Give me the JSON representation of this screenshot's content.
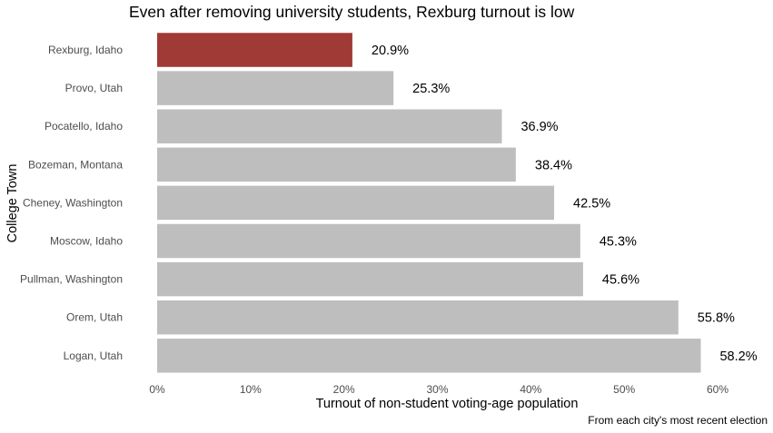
{
  "chart_data": {
    "type": "bar",
    "orientation": "horizontal",
    "title": "Even after removing university students, Rexburg turnout is low",
    "xlabel": "Turnout of non-student voting-age population",
    "ylabel": "College Town",
    "caption": "From each city's most recent election",
    "categories": [
      "Rexburg, Idaho",
      "Provo, Utah",
      "Pocatello, Idaho",
      "Bozeman, Montana",
      "Cheney, Washington",
      "Moscow, Idaho",
      "Pullman, Washington",
      "Orem, Utah",
      "Logan, Utah"
    ],
    "values": [
      20.9,
      25.3,
      36.9,
      38.4,
      42.5,
      45.3,
      45.6,
      55.8,
      58.2
    ],
    "value_labels": [
      "20.9%",
      "25.3%",
      "36.9%",
      "38.4%",
      "42.5%",
      "45.3%",
      "45.6%",
      "55.8%",
      "58.2%"
    ],
    "xlim": [
      0,
      60
    ],
    "xticks": [
      0,
      10,
      20,
      30,
      40,
      50,
      60
    ],
    "xtick_labels": [
      "0%",
      "10%",
      "20%",
      "30%",
      "40%",
      "50%",
      "60%"
    ],
    "grid": false,
    "legend": "none",
    "colors": {
      "highlight": "#a03a37",
      "default": "#bebebe"
    },
    "highlight_index": 0
  }
}
